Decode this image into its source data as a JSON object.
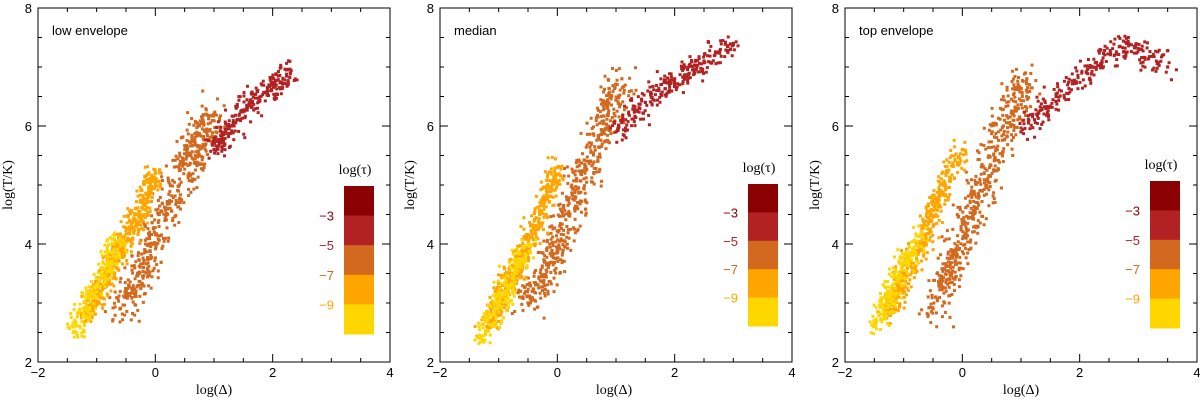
{
  "chart_data": [
    {
      "type": "scatter",
      "title": "low envelope",
      "xlabel": "log(Δ)",
      "ylabel": "log(T/K)",
      "xlim": [
        -2,
        4
      ],
      "ylim": [
        2,
        8
      ],
      "xticks": [
        -2,
        0,
        2,
        4
      ],
      "yticks": [
        2,
        4,
        6,
        8
      ],
      "colorbar": {
        "label": "log(τ)",
        "ticks": [
          "−3",
          "−5",
          "−7",
          "−9"
        ]
      },
      "series": [
        {
          "name": "-9",
          "color": "#FFD700",
          "x": [
            -1.4,
            -1.2,
            -1.0,
            -0.8,
            -0.6
          ],
          "y": [
            2.5,
            2.9,
            3.3,
            3.7,
            4.1
          ]
        },
        {
          "name": "-7",
          "color": "#FFA500",
          "x": [
            -1.2,
            -0.9,
            -0.6,
            -0.3,
            0.0
          ],
          "y": [
            2.8,
            3.3,
            3.9,
            4.5,
            5.2
          ]
        },
        {
          "name": "-5",
          "color": "#D2691E",
          "x": [
            -0.6,
            -0.2,
            0.2,
            0.6,
            1.0
          ],
          "y": [
            2.9,
            3.6,
            4.6,
            5.5,
            6.2
          ]
        },
        {
          "name": "-3",
          "color": "#B22222",
          "x": [
            1.0,
            1.3,
            1.6,
            2.0,
            2.3
          ],
          "y": [
            5.6,
            6.0,
            6.4,
            6.7,
            6.9
          ]
        }
      ]
    },
    {
      "type": "scatter",
      "title": "median",
      "xlabel": "log(Δ)",
      "ylabel": "log(T/K)",
      "xlim": [
        -2,
        4
      ],
      "ylim": [
        2,
        8
      ],
      "xticks": [
        -2,
        0,
        2,
        4
      ],
      "yticks": [
        2,
        4,
        6,
        8
      ],
      "colorbar": {
        "label": "log(τ)",
        "ticks": [
          "−3",
          "−5",
          "−7",
          "−9"
        ]
      },
      "series": [
        {
          "name": "-9",
          "color": "#FFD700",
          "x": [
            -1.3,
            -1.1,
            -0.9,
            -0.7,
            -0.5
          ],
          "y": [
            2.4,
            2.8,
            3.2,
            3.6,
            4.0
          ]
        },
        {
          "name": "-7",
          "color": "#FFA500",
          "x": [
            -1.2,
            -0.9,
            -0.6,
            -0.3,
            0.0
          ],
          "y": [
            2.6,
            3.2,
            3.8,
            4.5,
            5.3
          ]
        },
        {
          "name": "-5",
          "color": "#D2691E",
          "x": [
            -0.5,
            -0.1,
            0.3,
            0.7,
            1.1
          ],
          "y": [
            3.0,
            3.8,
            4.8,
            5.8,
            6.8
          ]
        },
        {
          "name": "-3",
          "color": "#B22222",
          "x": [
            1.0,
            1.5,
            2.0,
            2.5,
            3.0
          ],
          "y": [
            5.9,
            6.4,
            6.8,
            7.1,
            7.4
          ]
        }
      ]
    },
    {
      "type": "scatter",
      "title": "top envelope",
      "xlabel": "log(Δ)",
      "ylabel": "log(T/K)",
      "xlim": [
        -2,
        4
      ],
      "ylim": [
        2,
        8
      ],
      "xticks": [
        -2,
        0,
        2,
        4
      ],
      "yticks": [
        2,
        4,
        6,
        8
      ],
      "colorbar": {
        "label": "log(τ)",
        "ticks": [
          "−3",
          "−5",
          "−7",
          "−9"
        ]
      },
      "series": [
        {
          "name": "-9",
          "color": "#FFD700",
          "x": [
            -1.5,
            -1.3,
            -1.1,
            -0.9,
            -0.7
          ],
          "y": [
            2.6,
            3.0,
            3.4,
            3.8,
            4.2
          ]
        },
        {
          "name": "-7",
          "color": "#FFA500",
          "x": [
            -1.3,
            -1.0,
            -0.7,
            -0.4,
            0.0
          ],
          "y": [
            2.8,
            3.4,
            4.0,
            4.8,
            5.6
          ]
        },
        {
          "name": "-5",
          "color": "#D2691E",
          "x": [
            -0.5,
            -0.1,
            0.3,
            0.7,
            1.1
          ],
          "y": [
            2.9,
            3.8,
            4.9,
            6.0,
            6.8
          ]
        },
        {
          "name": "-3",
          "color": "#B22222",
          "x": [
            1.0,
            1.6,
            2.2,
            2.8,
            3.5
          ],
          "y": [
            5.9,
            6.5,
            7.0,
            7.4,
            7.0
          ]
        }
      ]
    }
  ]
}
